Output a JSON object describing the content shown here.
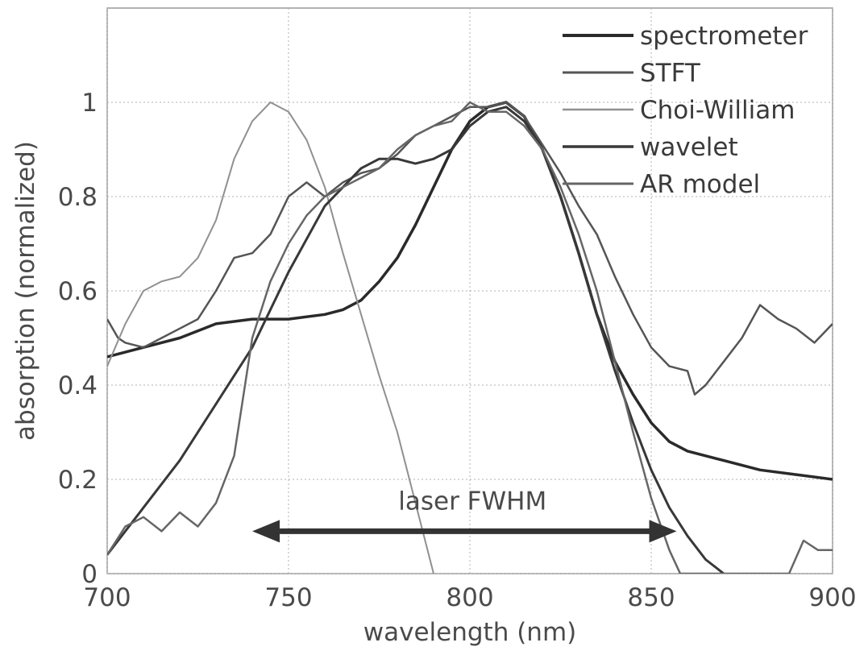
{
  "chart_data": {
    "type": "line",
    "xlabel": "wavelength (nm)",
    "ylabel": "absorption (normalized)",
    "xlim": [
      700,
      900
    ],
    "ylim": [
      0,
      1.2
    ],
    "x_ticks": [
      700,
      750,
      800,
      850,
      900
    ],
    "x_tick_labels": [
      "700",
      "750",
      "800",
      "850",
      "900"
    ],
    "y_ticks": [
      0,
      0.2,
      0.4,
      0.6,
      0.8,
      1
    ],
    "y_tick_labels": [
      "0",
      "0.2",
      "0.4",
      "0.6",
      "0.8",
      "1"
    ],
    "grid": true,
    "legend_position": "top-right",
    "annotation": {
      "text": "laser FWHM",
      "x_start": 740,
      "x_end": 857,
      "y": 0.09
    },
    "series": [
      {
        "name": "spectrometer",
        "color": "#2a2a2a",
        "width": 3.5,
        "points": [
          [
            700,
            0.46
          ],
          [
            710,
            0.48
          ],
          [
            720,
            0.5
          ],
          [
            730,
            0.53
          ],
          [
            740,
            0.54
          ],
          [
            750,
            0.54
          ],
          [
            760,
            0.55
          ],
          [
            765,
            0.56
          ],
          [
            770,
            0.58
          ],
          [
            775,
            0.62
          ],
          [
            780,
            0.67
          ],
          [
            785,
            0.74
          ],
          [
            790,
            0.82
          ],
          [
            795,
            0.9
          ],
          [
            800,
            0.96
          ],
          [
            805,
            0.99
          ],
          [
            810,
            1.0
          ],
          [
            815,
            0.97
          ],
          [
            820,
            0.9
          ],
          [
            825,
            0.8
          ],
          [
            830,
            0.68
          ],
          [
            835,
            0.55
          ],
          [
            840,
            0.45
          ],
          [
            845,
            0.38
          ],
          [
            850,
            0.32
          ],
          [
            855,
            0.28
          ],
          [
            860,
            0.26
          ],
          [
            870,
            0.24
          ],
          [
            880,
            0.22
          ],
          [
            890,
            0.21
          ],
          [
            900,
            0.2
          ]
        ]
      },
      {
        "name": "STFT",
        "color": "#555555",
        "width": 2.5,
        "points": [
          [
            700,
            0.54
          ],
          [
            703,
            0.5
          ],
          [
            705,
            0.49
          ],
          [
            710,
            0.48
          ],
          [
            715,
            0.5
          ],
          [
            720,
            0.52
          ],
          [
            725,
            0.54
          ],
          [
            730,
            0.6
          ],
          [
            735,
            0.67
          ],
          [
            740,
            0.68
          ],
          [
            745,
            0.72
          ],
          [
            750,
            0.8
          ],
          [
            755,
            0.83
          ],
          [
            760,
            0.8
          ],
          [
            765,
            0.83
          ],
          [
            770,
            0.85
          ],
          [
            775,
            0.86
          ],
          [
            780,
            0.89
          ],
          [
            785,
            0.93
          ],
          [
            790,
            0.95
          ],
          [
            795,
            0.97
          ],
          [
            800,
            0.99
          ],
          [
            805,
            0.99
          ],
          [
            810,
            1.0
          ],
          [
            815,
            0.97
          ],
          [
            820,
            0.91
          ],
          [
            825,
            0.85
          ],
          [
            830,
            0.78
          ],
          [
            835,
            0.72
          ],
          [
            840,
            0.63
          ],
          [
            845,
            0.55
          ],
          [
            850,
            0.48
          ],
          [
            855,
            0.44
          ],
          [
            860,
            0.43
          ],
          [
            862,
            0.38
          ],
          [
            865,
            0.4
          ],
          [
            870,
            0.45
          ],
          [
            875,
            0.5
          ],
          [
            880,
            0.57
          ],
          [
            885,
            0.54
          ],
          [
            890,
            0.52
          ],
          [
            895,
            0.49
          ],
          [
            900,
            0.53
          ]
        ]
      },
      {
        "name": "Choi-William",
        "color": "#909090",
        "width": 2,
        "points": [
          [
            700,
            0.44
          ],
          [
            705,
            0.53
          ],
          [
            710,
            0.6
          ],
          [
            715,
            0.62
          ],
          [
            720,
            0.63
          ],
          [
            725,
            0.67
          ],
          [
            730,
            0.75
          ],
          [
            735,
            0.88
          ],
          [
            740,
            0.96
          ],
          [
            745,
            1.0
          ],
          [
            750,
            0.98
          ],
          [
            755,
            0.92
          ],
          [
            760,
            0.82
          ],
          [
            765,
            0.68
          ],
          [
            770,
            0.55
          ],
          [
            775,
            0.42
          ],
          [
            780,
            0.3
          ],
          [
            785,
            0.15
          ],
          [
            790,
            0.0
          ]
        ]
      },
      {
        "name": "wavelet",
        "color": "#383838",
        "width": 3,
        "points": [
          [
            700,
            0.04
          ],
          [
            710,
            0.14
          ],
          [
            720,
            0.24
          ],
          [
            730,
            0.36
          ],
          [
            740,
            0.48
          ],
          [
            750,
            0.64
          ],
          [
            760,
            0.78
          ],
          [
            770,
            0.86
          ],
          [
            775,
            0.88
          ],
          [
            780,
            0.88
          ],
          [
            785,
            0.87
          ],
          [
            790,
            0.88
          ],
          [
            795,
            0.9
          ],
          [
            800,
            0.95
          ],
          [
            805,
            0.98
          ],
          [
            810,
            0.99
          ],
          [
            815,
            0.96
          ],
          [
            820,
            0.9
          ],
          [
            825,
            0.8
          ],
          [
            830,
            0.68
          ],
          [
            835,
            0.55
          ],
          [
            840,
            0.43
          ],
          [
            845,
            0.32
          ],
          [
            850,
            0.22
          ],
          [
            855,
            0.14
          ],
          [
            860,
            0.08
          ],
          [
            865,
            0.03
          ],
          [
            870,
            0.0
          ]
        ]
      },
      {
        "name": "AR model",
        "color": "#666666",
        "width": 2.5,
        "points": [
          [
            700,
            0.04
          ],
          [
            705,
            0.1
          ],
          [
            710,
            0.12
          ],
          [
            715,
            0.09
          ],
          [
            720,
            0.13
          ],
          [
            725,
            0.1
          ],
          [
            730,
            0.15
          ],
          [
            735,
            0.25
          ],
          [
            740,
            0.5
          ],
          [
            745,
            0.62
          ],
          [
            750,
            0.7
          ],
          [
            755,
            0.76
          ],
          [
            760,
            0.8
          ],
          [
            765,
            0.82
          ],
          [
            770,
            0.84
          ],
          [
            775,
            0.86
          ],
          [
            780,
            0.9
          ],
          [
            785,
            0.93
          ],
          [
            790,
            0.95
          ],
          [
            795,
            0.96
          ],
          [
            800,
            1.0
          ],
          [
            805,
            0.98
          ],
          [
            810,
            0.98
          ],
          [
            815,
            0.95
          ],
          [
            820,
            0.9
          ],
          [
            825,
            0.82
          ],
          [
            830,
            0.72
          ],
          [
            835,
            0.6
          ],
          [
            840,
            0.45
          ],
          [
            845,
            0.3
          ],
          [
            850,
            0.16
          ],
          [
            855,
            0.05
          ],
          [
            858,
            0.0
          ],
          [
            888,
            0.0
          ],
          [
            892,
            0.07
          ],
          [
            896,
            0.05
          ],
          [
            900,
            0.05
          ]
        ]
      }
    ]
  }
}
